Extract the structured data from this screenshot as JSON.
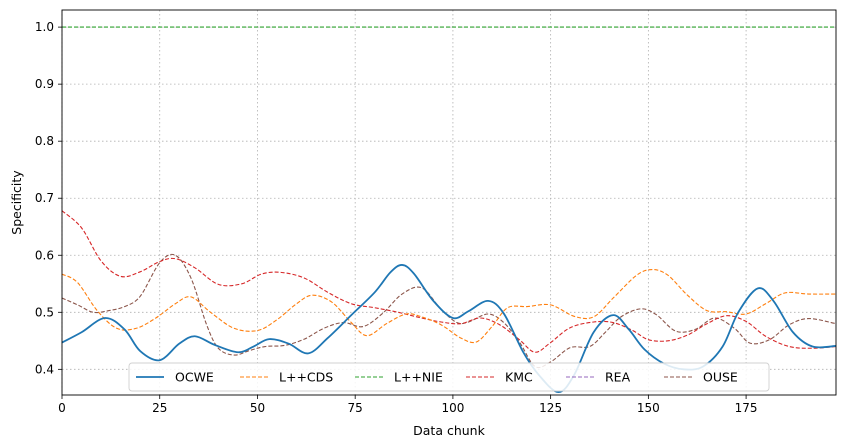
{
  "chart_data": {
    "type": "line",
    "title": "",
    "xlabel": "Data chunk",
    "ylabel": "Specificity",
    "xlim": [
      0,
      198
    ],
    "ylim": [
      0.355,
      1.03
    ],
    "x_ticks": [
      0,
      25,
      50,
      75,
      100,
      125,
      150,
      175
    ],
    "y_ticks": [
      0.4,
      0.5,
      0.6,
      0.7,
      0.8,
      0.9,
      1.0
    ],
    "x_tick_labels": [
      "0",
      "25",
      "50",
      "75",
      "100",
      "125",
      "150",
      "175"
    ],
    "y_tick_labels": [
      "0.4",
      "0.5",
      "0.6",
      "0.7",
      "0.8",
      "0.9",
      "1.0"
    ],
    "grid": true,
    "legend_position": "bottom-center",
    "series": [
      {
        "name": "OCWE",
        "color": "#1f77b4",
        "style": "solid",
        "points": [
          [
            0,
            0.447
          ],
          [
            5,
            0.465
          ],
          [
            11,
            0.49
          ],
          [
            16,
            0.47
          ],
          [
            20,
            0.432
          ],
          [
            25,
            0.416
          ],
          [
            30,
            0.445
          ],
          [
            34,
            0.458
          ],
          [
            39,
            0.443
          ],
          [
            45,
            0.43
          ],
          [
            49,
            0.44
          ],
          [
            53,
            0.453
          ],
          [
            58,
            0.445
          ],
          [
            63,
            0.428
          ],
          [
            68,
            0.455
          ],
          [
            74,
            0.495
          ],
          [
            80,
            0.535
          ],
          [
            84,
            0.57
          ],
          [
            87,
            0.583
          ],
          [
            90,
            0.568
          ],
          [
            95,
            0.52
          ],
          [
            100,
            0.49
          ],
          [
            104,
            0.502
          ],
          [
            109,
            0.52
          ],
          [
            113,
            0.498
          ],
          [
            118,
            0.43
          ],
          [
            122,
            0.39
          ],
          [
            127,
            0.36
          ],
          [
            131,
            0.39
          ],
          [
            136,
            0.465
          ],
          [
            141,
            0.495
          ],
          [
            145,
            0.47
          ],
          [
            149,
            0.435
          ],
          [
            154,
            0.41
          ],
          [
            159,
            0.4
          ],
          [
            164,
            0.405
          ],
          [
            169,
            0.44
          ],
          [
            173,
            0.5
          ],
          [
            178,
            0.542
          ],
          [
            182,
            0.52
          ],
          [
            187,
            0.465
          ],
          [
            192,
            0.44
          ],
          [
            198,
            0.441
          ]
        ]
      },
      {
        "name": "L++CDS",
        "color": "#ff7f0e",
        "style": "dashed",
        "points": [
          [
            0,
            0.567
          ],
          [
            4,
            0.552
          ],
          [
            9,
            0.503
          ],
          [
            14,
            0.472
          ],
          [
            19,
            0.472
          ],
          [
            24,
            0.49
          ],
          [
            29,
            0.515
          ],
          [
            33,
            0.527
          ],
          [
            38,
            0.5
          ],
          [
            44,
            0.472
          ],
          [
            50,
            0.468
          ],
          [
            55,
            0.487
          ],
          [
            60,
            0.515
          ],
          [
            64,
            0.53
          ],
          [
            69,
            0.518
          ],
          [
            74,
            0.482
          ],
          [
            78,
            0.459
          ],
          [
            83,
            0.48
          ],
          [
            88,
            0.497
          ],
          [
            92,
            0.492
          ],
          [
            97,
            0.478
          ],
          [
            102,
            0.455
          ],
          [
            106,
            0.448
          ],
          [
            110,
            0.475
          ],
          [
            114,
            0.508
          ],
          [
            119,
            0.51
          ],
          [
            125,
            0.513
          ],
          [
            131,
            0.493
          ],
          [
            136,
            0.492
          ],
          [
            141,
            0.525
          ],
          [
            147,
            0.565
          ],
          [
            151,
            0.575
          ],
          [
            155,
            0.565
          ],
          [
            160,
            0.53
          ],
          [
            165,
            0.503
          ],
          [
            170,
            0.501
          ],
          [
            175,
            0.497
          ],
          [
            180,
            0.515
          ],
          [
            185,
            0.534
          ],
          [
            191,
            0.532
          ],
          [
            198,
            0.532
          ]
        ]
      },
      {
        "name": "L++NIE",
        "color": "#2ca02c",
        "style": "dashed",
        "points": [
          [
            0,
            1.0
          ],
          [
            198,
            1.0
          ]
        ]
      },
      {
        "name": "KMC",
        "color": "#d62728",
        "style": "dashed",
        "points": [
          [
            0,
            0.678
          ],
          [
            5,
            0.648
          ],
          [
            10,
            0.59
          ],
          [
            15,
            0.563
          ],
          [
            20,
            0.571
          ],
          [
            25,
            0.589
          ],
          [
            29,
            0.594
          ],
          [
            34,
            0.578
          ],
          [
            40,
            0.549
          ],
          [
            46,
            0.55
          ],
          [
            51,
            0.567
          ],
          [
            56,
            0.57
          ],
          [
            62,
            0.56
          ],
          [
            68,
            0.535
          ],
          [
            74,
            0.515
          ],
          [
            80,
            0.508
          ],
          [
            86,
            0.5
          ],
          [
            92,
            0.49
          ],
          [
            97,
            0.483
          ],
          [
            102,
            0.48
          ],
          [
            107,
            0.49
          ],
          [
            112,
            0.478
          ],
          [
            117,
            0.452
          ],
          [
            121,
            0.43
          ],
          [
            125,
            0.447
          ],
          [
            130,
            0.473
          ],
          [
            136,
            0.483
          ],
          [
            141,
            0.482
          ],
          [
            146,
            0.468
          ],
          [
            150,
            0.452
          ],
          [
            155,
            0.45
          ],
          [
            160,
            0.46
          ],
          [
            165,
            0.48
          ],
          [
            170,
            0.494
          ],
          [
            175,
            0.484
          ],
          [
            180,
            0.458
          ],
          [
            186,
            0.44
          ],
          [
            192,
            0.437
          ],
          [
            198,
            0.44
          ]
        ]
      },
      {
        "name": "REA",
        "color": "#9467bd",
        "style": "dashed",
        "points": []
      },
      {
        "name": "OUSE",
        "color": "#8c564b",
        "style": "dashed",
        "points": [
          [
            0,
            0.525
          ],
          [
            4,
            0.513
          ],
          [
            8,
            0.5
          ],
          [
            12,
            0.503
          ],
          [
            16,
            0.51
          ],
          [
            20,
            0.528
          ],
          [
            25,
            0.587
          ],
          [
            29,
            0.6
          ],
          [
            33,
            0.56
          ],
          [
            37,
            0.478
          ],
          [
            40,
            0.437
          ],
          [
            44,
            0.425
          ],
          [
            48,
            0.433
          ],
          [
            52,
            0.44
          ],
          [
            57,
            0.442
          ],
          [
            62,
            0.453
          ],
          [
            67,
            0.472
          ],
          [
            72,
            0.482
          ],
          [
            77,
            0.475
          ],
          [
            82,
            0.498
          ],
          [
            87,
            0.532
          ],
          [
            92,
            0.543
          ],
          [
            97,
            0.505
          ],
          [
            101,
            0.482
          ],
          [
            104,
            0.483
          ],
          [
            109,
            0.497
          ],
          [
            113,
            0.482
          ],
          [
            117,
            0.448
          ],
          [
            121,
            0.405
          ],
          [
            125,
            0.413
          ],
          [
            130,
            0.438
          ],
          [
            135,
            0.44
          ],
          [
            139,
            0.465
          ],
          [
            143,
            0.492
          ],
          [
            148,
            0.506
          ],
          [
            152,
            0.496
          ],
          [
            157,
            0.467
          ],
          [
            162,
            0.47
          ],
          [
            167,
            0.49
          ],
          [
            172,
            0.472
          ],
          [
            176,
            0.446
          ],
          [
            181,
            0.452
          ],
          [
            186,
            0.478
          ],
          [
            191,
            0.489
          ],
          [
            198,
            0.48
          ]
        ]
      }
    ]
  }
}
